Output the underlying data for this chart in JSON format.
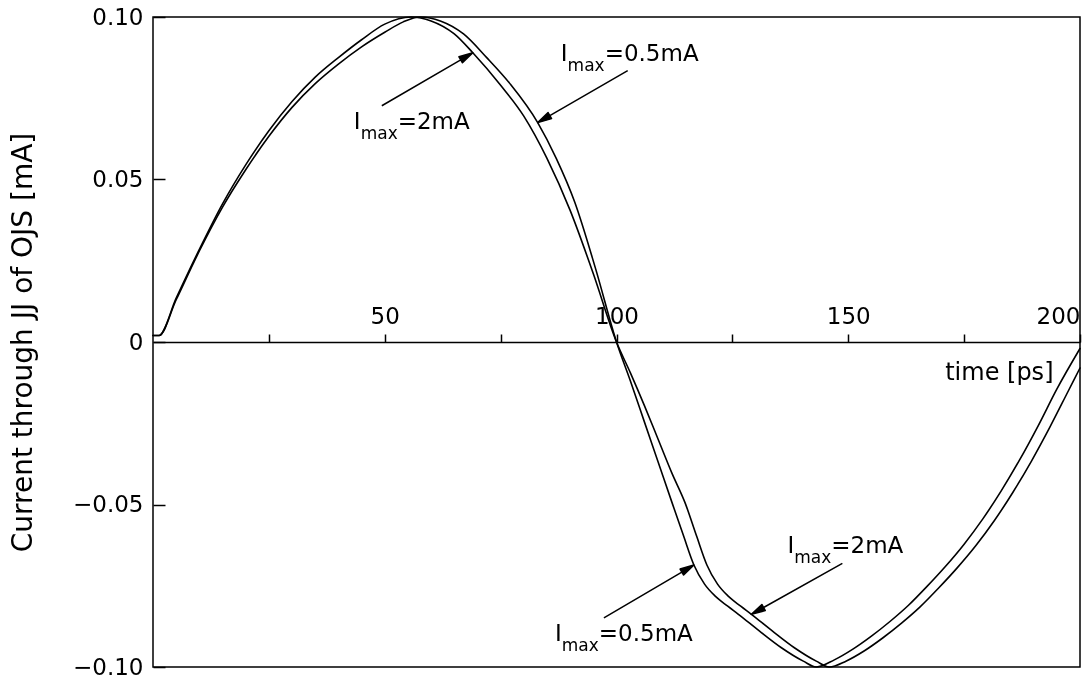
{
  "chart_data": {
    "type": "line",
    "xlabel": "time [ps]",
    "ylabel": "Current through JJ of OJS [mA]",
    "xlim": [
      0,
      200
    ],
    "xticks": [
      {
        "value": 25,
        "label": null
      },
      50,
      {
        "value": 75,
        "label": null
      },
      100,
      {
        "value": 125,
        "label": null
      },
      150,
      {
        "value": 175,
        "label": null
      },
      200
    ],
    "ylim": [
      -0.1,
      0.1
    ],
    "yticks": [
      {
        "value": -0.1,
        "label": "−0.10"
      },
      {
        "value": -0.05,
        "label": "−0.05"
      },
      0,
      0.05,
      {
        "value": 0.1,
        "label": "0.10"
      }
    ],
    "series": [
      {
        "color": "#000000",
        "x": [
          0,
          1.3,
          5,
          10,
          15,
          20,
          25,
          30,
          35,
          40,
          45,
          50,
          55.7,
          60,
          65,
          69,
          75,
          80,
          85,
          90,
          95,
          100,
          103,
          106,
          109,
          112,
          114.8,
          117.3,
          119.5,
          121.8,
          124.1,
          126.8,
          129.1,
          133.6,
          138.3,
          143.1,
          145.9,
          149.5,
          153.5,
          157.5,
          161.5,
          165.5,
          169.5,
          173.5,
          177.5,
          181.5,
          185.5,
          189.5,
          193.5,
          197.5,
          200
        ],
        "values": [
          0.002,
          0.002,
          0.0135,
          0.0285,
          0.0425,
          0.0545,
          0.065,
          0.074,
          0.0815,
          0.0875,
          0.093,
          0.0978,
          0.1,
          0.0988,
          0.0948,
          0.089,
          0.079,
          0.0695,
          0.0565,
          0.0405,
          0.021,
          0,
          -0.0095,
          -0.0195,
          -0.03,
          -0.0405,
          -0.0495,
          -0.0598,
          -0.0686,
          -0.0745,
          -0.0782,
          -0.0813,
          -0.0838,
          -0.0889,
          -0.094,
          -0.0982,
          -0.1,
          -0.0982,
          -0.095,
          -0.091,
          -0.0865,
          -0.0815,
          -0.0757,
          -0.0695,
          -0.0627,
          -0.055,
          -0.0463,
          -0.0367,
          -0.0262,
          -0.015,
          -0.008
        ]
      },
      {
        "color": "#000000",
        "x": [
          0,
          1.3,
          5,
          10,
          15,
          20,
          25,
          30,
          35,
          40,
          45,
          50,
          54,
          57.6,
          62,
          67,
          72,
          77,
          83,
          87,
          91,
          95.5,
          100,
          103,
          106,
          109,
          112,
          114.5,
          116.7,
          119,
          121.3,
          124,
          126.3,
          130.8,
          135.5,
          140.3,
          143.1,
          147,
          151,
          155,
          159,
          163,
          167,
          171,
          175,
          179,
          183,
          187,
          191,
          195,
          200
        ],
        "values": [
          0.002,
          0.002,
          0.013,
          0.028,
          0.0415,
          0.053,
          0.0633,
          0.0722,
          0.0795,
          0.0855,
          0.0908,
          0.0953,
          0.0985,
          0.1,
          0.0988,
          0.0948,
          0.0875,
          0.0795,
          0.0675,
          0.0565,
          0.043,
          0.0225,
          0,
          -0.012,
          -0.0245,
          -0.037,
          -0.0495,
          -0.0598,
          -0.0686,
          -0.0745,
          -0.0782,
          -0.0813,
          -0.0838,
          -0.0889,
          -0.094,
          -0.0982,
          -0.1,
          -0.0978,
          -0.0945,
          -0.0905,
          -0.086,
          -0.081,
          -0.0752,
          -0.069,
          -0.0622,
          -0.0545,
          -0.0458,
          -0.0362,
          -0.0257,
          -0.0145,
          -0.002
        ]
      }
    ],
    "annotations": [
      {
        "text": "I$_{max}$=0.5mA",
        "x": 83,
        "y": 0.0675
      },
      {
        "text": "I$_{max}$=2mA",
        "x": 69,
        "y": 0.089
      },
      {
        "text": "I$_{max}$=2mA",
        "x": 129.1,
        "y": -0.0838
      },
      {
        "text": "I$_{max}$=0.5mA",
        "x": 116.7,
        "y": -0.0686
      }
    ]
  }
}
